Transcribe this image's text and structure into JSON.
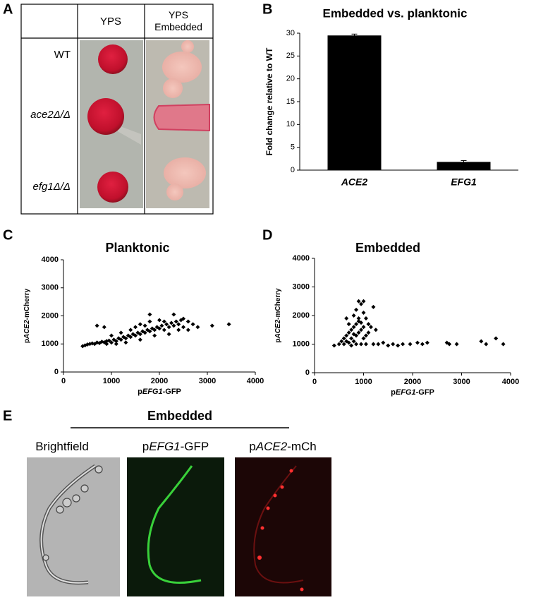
{
  "panel_labels": [
    "A",
    "B",
    "C",
    "D",
    "E"
  ],
  "table": {
    "columns": [
      "YPS",
      "YPS Embedded"
    ],
    "rows": [
      "WT",
      "ace2Δ/Δ",
      "efg1Δ/Δ"
    ]
  },
  "chart_data": [
    {
      "type": "bar",
      "title": "Embedded vs. planktonic",
      "ylabel": "Fold change relative to WT",
      "categories": [
        "ACE2",
        "EFG1"
      ],
      "values": [
        29.5,
        1.8
      ],
      "errors": [
        0.3,
        0.3
      ],
      "color": "#000000",
      "ylim": [
        0,
        30
      ],
      "yticks": [
        0,
        5,
        10,
        15,
        20,
        25,
        30
      ]
    },
    {
      "type": "scatter",
      "title": "Planktonic",
      "xlabel": [
        "p",
        "EFG1",
        "-GFP"
      ],
      "ylabel": [
        "p",
        "ACE2",
        "-mCherry"
      ],
      "color": "#000000",
      "xlim": [
        0,
        4000
      ],
      "xticks": [
        0,
        1000,
        2000,
        3000,
        4000
      ],
      "ylim": [
        0,
        4000
      ],
      "yticks": [
        0,
        1000,
        2000,
        3000,
        4000
      ],
      "x": [
        400,
        450,
        500,
        550,
        600,
        650,
        700,
        750,
        800,
        850,
        900,
        950,
        1000,
        1050,
        1100,
        1150,
        1200,
        1250,
        1300,
        1350,
        1400,
        1450,
        1500,
        1550,
        1600,
        1650,
        1700,
        1750,
        1800,
        1850,
        1900,
        1950,
        2000,
        2050,
        2100,
        2150,
        2200,
        2250,
        2300,
        2350,
        2400,
        2450,
        2500,
        2600,
        2700,
        2800,
        3100,
        3450,
        700,
        850,
        1800,
        2300,
        1000,
        1200,
        1400,
        1600,
        1800,
        2000,
        1300,
        1600,
        1900,
        2200,
        1100,
        900,
        2500,
        2600,
        1500,
        1700,
        2100,
        2400
      ],
      "values": [
        920,
        950,
        980,
        1000,
        1020,
        1000,
        1050,
        1030,
        1080,
        1060,
        1100,
        1120,
        1050,
        1150,
        1100,
        1200,
        1150,
        1250,
        1200,
        1300,
        1250,
        1350,
        1300,
        1400,
        1350,
        1450,
        1400,
        1500,
        1450,
        1550,
        1500,
        1600,
        1550,
        1650,
        1500,
        1700,
        1600,
        1750,
        1650,
        1800,
        1700,
        1850,
        1600,
        1500,
        1700,
        1600,
        1650,
        1700,
        1650,
        1600,
        2050,
        2050,
        1300,
        1400,
        1500,
        1700,
        1800,
        1850,
        1050,
        1150,
        1300,
        1350,
        1000,
        1000,
        1900,
        1800,
        1600,
        1650,
        1800,
        1500
      ]
    },
    {
      "type": "scatter",
      "title": "Embedded",
      "xlabel": [
        "p",
        "EFG1",
        "-GFP"
      ],
      "ylabel": [
        "p",
        "ACE2",
        "-mCherry"
      ],
      "color": "#000000",
      "xlim": [
        0,
        4000
      ],
      "xticks": [
        0,
        1000,
        2000,
        3000,
        4000
      ],
      "ylim": [
        0,
        4000
      ],
      "yticks": [
        0,
        1000,
        2000,
        3000,
        4000
      ],
      "x": [
        400,
        500,
        550,
        600,
        650,
        700,
        700,
        750,
        750,
        800,
        800,
        850,
        850,
        900,
        900,
        900,
        950,
        950,
        1000,
        1000,
        1050,
        1050,
        1100,
        1100,
        1150,
        1200,
        1200,
        1250,
        600,
        650,
        750,
        850,
        950,
        1000,
        850,
        800,
        700,
        650,
        1300,
        1400,
        1500,
        1600,
        1700,
        1800,
        1950,
        2100,
        2200,
        2300,
        2700,
        2750,
        2900,
        3400,
        3500,
        3700,
        3850,
        1000,
        900,
        1050,
        950,
        800
      ],
      "values": [
        950,
        1000,
        1100,
        1200,
        1300,
        1400,
        1050,
        1500,
        1200,
        1600,
        1100,
        1700,
        1300,
        1800,
        1900,
        2500,
        2400,
        1500,
        2100,
        1200,
        1900,
        1000,
        1700,
        1400,
        1600,
        2300,
        1000,
        1500,
        1000,
        1100,
        950,
        1000,
        1000,
        2500,
        2200,
        2000,
        1700,
        1900,
        1000,
        1050,
        950,
        1000,
        950,
        1000,
        1000,
        1050,
        1000,
        1050,
        1050,
        1000,
        1000,
        1100,
        1000,
        1200,
        1000,
        1600,
        1400,
        1300,
        1750,
        1350
      ]
    }
  ],
  "images": {
    "title": "Embedded",
    "labels": [
      [
        "Brightfield"
      ],
      [
        "p",
        "EFG1",
        "-GFP"
      ],
      [
        "p",
        "ACE2",
        "-mCh"
      ]
    ]
  }
}
